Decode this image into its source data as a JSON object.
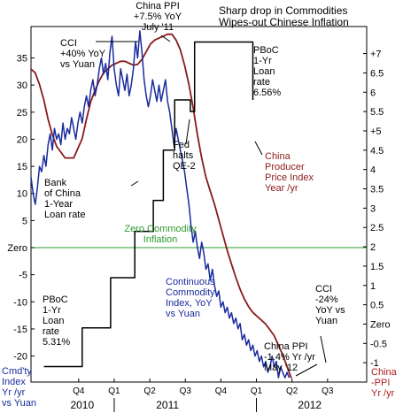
{
  "chart_data": {
    "type": "line",
    "title_lines": [
      "Sharp drop in Commodities",
      "Wipes-out Chinese Inflation"
    ],
    "left_axis": {
      "ticks": [
        35,
        30,
        25,
        20,
        15,
        10,
        5,
        0,
        -5,
        -10,
        -15,
        -20
      ],
      "tick_labels": [
        "35",
        "30",
        "25",
        "20",
        "15",
        "10",
        "5",
        "Zero",
        "-5",
        "-10",
        "-15",
        "-20"
      ],
      "ylim": [
        -24.8,
        40.8
      ],
      "title_lines": [
        "Cmd'ty",
        "Index",
        "Yr /yr",
        "vs Yuan"
      ]
    },
    "right_axis": {
      "ticks": [
        7,
        6.5,
        6,
        5.5,
        5,
        4.5,
        4,
        3.5,
        3,
        2.5,
        2,
        1.5,
        1,
        0.5,
        0,
        -0.5,
        -1
      ],
      "tick_labels": [
        "+7",
        "6.5",
        "6",
        "5.5",
        "+5",
        "4.5",
        "4",
        "3.5",
        "3",
        "2.5",
        "2",
        "1.5",
        "1",
        "0.5",
        "Zero",
        "-0.5",
        "-1"
      ],
      "ylim": [
        -1.5,
        7.7
      ],
      "title_lines": [
        "China",
        "-PPI",
        "Yr /yr"
      ]
    },
    "x_axis": {
      "quarter_labels": [
        "Q4",
        "Q1",
        "Q2",
        "Q3",
        "Q4",
        "Q1",
        "Q2",
        "Q3"
      ],
      "quarter_positions": [
        2009.875,
        2010.125,
        2010.375,
        2010.625,
        2010.875,
        2011.125,
        2011.375,
        2011.625
      ],
      "year_labels": [
        "2010",
        "2011",
        "2012"
      ],
      "year_positions": [
        2009.9,
        2010.5,
        2011.5
      ],
      "xlim": [
        2009.54,
        2011.9
      ]
    },
    "zero_line_label": [
      "Zero Commodity",
      "Inflation"
    ],
    "series": [
      {
        "name": "China Producer Price Index Year /yr",
        "axis": "right",
        "color": "#8b1a1a",
        "points": [
          [
            2009.54,
            6.6
          ],
          [
            2009.57,
            6.5
          ],
          [
            2009.6,
            6.2
          ],
          [
            2009.63,
            5.8
          ],
          [
            2009.66,
            5.3
          ],
          [
            2009.69,
            4.9
          ],
          [
            2009.72,
            4.6
          ],
          [
            2009.75,
            4.45
          ],
          [
            2009.78,
            4.3
          ],
          [
            2009.81,
            4.3
          ],
          [
            2009.84,
            4.3
          ],
          [
            2009.87,
            4.55
          ],
          [
            2009.9,
            4.8
          ],
          [
            2009.93,
            5.3
          ],
          [
            2009.96,
            5.75
          ],
          [
            2009.99,
            6.05
          ],
          [
            2010.02,
            6.3
          ],
          [
            2010.05,
            6.5
          ],
          [
            2010.08,
            6.6
          ],
          [
            2010.11,
            6.7
          ],
          [
            2010.14,
            6.75
          ],
          [
            2010.17,
            6.8
          ],
          [
            2010.2,
            6.8
          ],
          [
            2010.23,
            6.75
          ],
          [
            2010.26,
            6.7
          ],
          [
            2010.29,
            6.72
          ],
          [
            2010.32,
            6.85
          ],
          [
            2010.35,
            7.05
          ],
          [
            2010.38,
            7.25
          ],
          [
            2010.41,
            7.35
          ],
          [
            2010.44,
            7.4
          ],
          [
            2010.47,
            7.45
          ],
          [
            2010.5,
            7.5
          ],
          [
            2010.53,
            7.5
          ],
          [
            2010.56,
            7.35
          ],
          [
            2010.59,
            7.1
          ],
          [
            2010.62,
            6.7
          ],
          [
            2010.65,
            6.2
          ],
          [
            2010.68,
            5.6
          ],
          [
            2010.71,
            4.9
          ],
          [
            2010.74,
            4.3
          ],
          [
            2010.77,
            3.8
          ],
          [
            2010.8,
            3.45
          ],
          [
            2010.83,
            3.1
          ],
          [
            2010.86,
            2.7
          ],
          [
            2010.89,
            2.3
          ],
          [
            2010.92,
            1.9
          ],
          [
            2010.95,
            1.55
          ],
          [
            2010.98,
            1.2
          ],
          [
            2011.01,
            0.9
          ],
          [
            2011.04,
            0.65
          ],
          [
            2011.07,
            0.45
          ],
          [
            2011.1,
            0.3
          ],
          [
            2011.13,
            0.2
          ],
          [
            2011.16,
            0.1
          ],
          [
            2011.19,
            0.0
          ],
          [
            2011.22,
            -0.15
          ],
          [
            2011.25,
            -0.3
          ],
          [
            2011.28,
            -0.55
          ],
          [
            2011.31,
            -0.8
          ],
          [
            2011.34,
            -1.1
          ],
          [
            2011.37,
            -1.4
          ]
        ]
      },
      {
        "name": "Continuous Commodity Index, YoY vs Yuan",
        "axis": "left",
        "color": "#1a2b9e",
        "points": [
          [
            2009.54,
            13
          ],
          [
            2009.555,
            10
          ],
          [
            2009.57,
            8
          ],
          [
            2009.585,
            11
          ],
          [
            2009.6,
            15
          ],
          [
            2009.615,
            14
          ],
          [
            2009.63,
            17
          ],
          [
            2009.645,
            15
          ],
          [
            2009.66,
            19
          ],
          [
            2009.675,
            21
          ],
          [
            2009.69,
            18
          ],
          [
            2009.705,
            22
          ],
          [
            2009.72,
            20
          ],
          [
            2009.735,
            21
          ],
          [
            2009.75,
            19
          ],
          [
            2009.765,
            23
          ],
          [
            2009.78,
            20
          ],
          [
            2009.795,
            22
          ],
          [
            2009.81,
            21
          ],
          [
            2009.825,
            24
          ],
          [
            2009.84,
            22
          ],
          [
            2009.855,
            20
          ],
          [
            2009.87,
            23
          ],
          [
            2009.885,
            25
          ],
          [
            2009.9,
            23
          ],
          [
            2009.915,
            26
          ],
          [
            2009.93,
            28
          ],
          [
            2009.945,
            26
          ],
          [
            2009.96,
            29
          ],
          [
            2009.975,
            31
          ],
          [
            2009.99,
            28
          ],
          [
            2010.005,
            30
          ],
          [
            2010.02,
            33
          ],
          [
            2010.035,
            35
          ],
          [
            2010.05,
            32
          ],
          [
            2010.065,
            34
          ],
          [
            2010.08,
            31
          ],
          [
            2010.095,
            36
          ],
          [
            2010.11,
            39
          ],
          [
            2010.125,
            33
          ],
          [
            2010.14,
            30
          ],
          [
            2010.155,
            28
          ],
          [
            2010.17,
            33
          ],
          [
            2010.185,
            31
          ],
          [
            2010.2,
            29
          ],
          [
            2010.215,
            32
          ],
          [
            2010.23,
            28
          ],
          [
            2010.245,
            30
          ],
          [
            2010.26,
            33
          ],
          [
            2010.275,
            38
          ],
          [
            2010.29,
            35
          ],
          [
            2010.305,
            40
          ],
          [
            2010.32,
            36
          ],
          [
            2010.335,
            31
          ],
          [
            2010.35,
            28
          ],
          [
            2010.365,
            26
          ],
          [
            2010.38,
            28
          ],
          [
            2010.395,
            31
          ],
          [
            2010.41,
            29
          ],
          [
            2010.425,
            27
          ],
          [
            2010.44,
            30
          ],
          [
            2010.455,
            27
          ],
          [
            2010.47,
            29
          ],
          [
            2010.485,
            31
          ],
          [
            2010.5,
            27
          ],
          [
            2010.515,
            25
          ],
          [
            2010.53,
            22
          ],
          [
            2010.545,
            19
          ],
          [
            2010.56,
            22
          ],
          [
            2010.575,
            20
          ],
          [
            2010.59,
            18
          ],
          [
            2010.605,
            16
          ],
          [
            2010.62,
            14
          ],
          [
            2010.635,
            11
          ],
          [
            2010.65,
            8
          ],
          [
            2010.665,
            4
          ],
          [
            2010.68,
            1
          ],
          [
            2010.695,
            3
          ],
          [
            2010.71,
            0
          ],
          [
            2010.725,
            -2
          ],
          [
            2010.74,
            1
          ],
          [
            2010.755,
            -1
          ],
          [
            2010.77,
            -4
          ],
          [
            2010.785,
            -3
          ],
          [
            2010.8,
            -6
          ],
          [
            2010.815,
            -4
          ],
          [
            2010.83,
            -7
          ],
          [
            2010.845,
            -9
          ],
          [
            2010.86,
            -8
          ],
          [
            2010.875,
            -11
          ],
          [
            2010.89,
            -10
          ],
          [
            2010.905,
            -12
          ],
          [
            2010.92,
            -11
          ],
          [
            2010.935,
            -13
          ],
          [
            2010.95,
            -12
          ],
          [
            2010.965,
            -14
          ],
          [
            2010.98,
            -13
          ],
          [
            2010.995,
            -15
          ],
          [
            2011.01,
            -14
          ],
          [
            2011.025,
            -17
          ],
          [
            2011.04,
            -16
          ],
          [
            2011.055,
            -18
          ],
          [
            2011.07,
            -17
          ],
          [
            2011.085,
            -19
          ],
          [
            2011.1,
            -18
          ],
          [
            2011.115,
            -20
          ],
          [
            2011.13,
            -19
          ],
          [
            2011.145,
            -21
          ],
          [
            2011.16,
            -20
          ],
          [
            2011.175,
            -22
          ],
          [
            2011.19,
            -21
          ],
          [
            2011.205,
            -23
          ],
          [
            2011.22,
            -22
          ],
          [
            2011.235,
            -20
          ],
          [
            2011.25,
            -22
          ],
          [
            2011.265,
            -21
          ],
          [
            2011.28,
            -24
          ],
          [
            2011.295,
            -22
          ],
          [
            2011.31,
            -23
          ],
          [
            2011.325,
            -24
          ],
          [
            2011.34,
            -23
          ],
          [
            2011.355,
            -24
          ]
        ]
      },
      {
        "name": "PBoC 1-Yr Loan rate",
        "axis": "right",
        "color": "#000000",
        "points": [
          [
            2009.63,
            -1.1
          ],
          [
            2009.9,
            -1.1
          ],
          [
            2009.9,
            -0.1
          ],
          [
            2010.1,
            -0.1
          ],
          [
            2010.1,
            1.2
          ],
          [
            2010.27,
            1.2
          ],
          [
            2010.27,
            2.4
          ],
          [
            2010.4,
            2.4
          ],
          [
            2010.4,
            3.2
          ],
          [
            2010.47,
            3.2
          ],
          [
            2010.47,
            4.5
          ],
          [
            2010.55,
            4.5
          ],
          [
            2010.55,
            5.8
          ],
          [
            2010.66,
            5.8
          ],
          [
            2010.66,
            5.5
          ],
          [
            2010.69,
            5.5
          ],
          [
            2010.69,
            7.3
          ],
          [
            2011.1,
            7.3
          ],
          [
            2011.1,
            5.8
          ]
        ]
      }
    ],
    "annotations": {
      "ppi_peak": [
        "China PPI",
        "+7.5% YoY",
        "July '11"
      ],
      "cci_peak": [
        "CCI",
        "+40% YoY",
        "vs Yuan"
      ],
      "pboc_high": [
        "PBoC",
        "1-Yr",
        "Loan",
        "rate",
        "6.56%"
      ],
      "fed": [
        "Fed",
        "halts",
        "QE-2"
      ],
      "boc_loan": [
        "Bank",
        "of China",
        "1-Year",
        "Loan rate"
      ],
      "ppi_label": [
        "China",
        "Producer",
        "Price Index",
        "Year /yr"
      ],
      "cci_label": [
        "Continuous",
        "Commodity",
        "Index, YoY",
        "vs Yuan"
      ],
      "pboc_low": [
        "PBoC",
        "1-Yr",
        "Loan",
        "rate",
        "5.31%"
      ],
      "cci_trough": [
        "CCI",
        "-24%",
        "YoY vs",
        "Yuan"
      ],
      "ppi_trough": [
        "China PPI",
        "-1.4% Yr /yr",
        "May '12"
      ]
    },
    "colors": {
      "ppi": "#8b1a1a",
      "cci": "#1a2b9e",
      "zero_line": "#2e9a2e",
      "zero_text": "#2e9a2e",
      "left_title": "#1a2b9e",
      "right_title": "#b01c1c"
    }
  }
}
